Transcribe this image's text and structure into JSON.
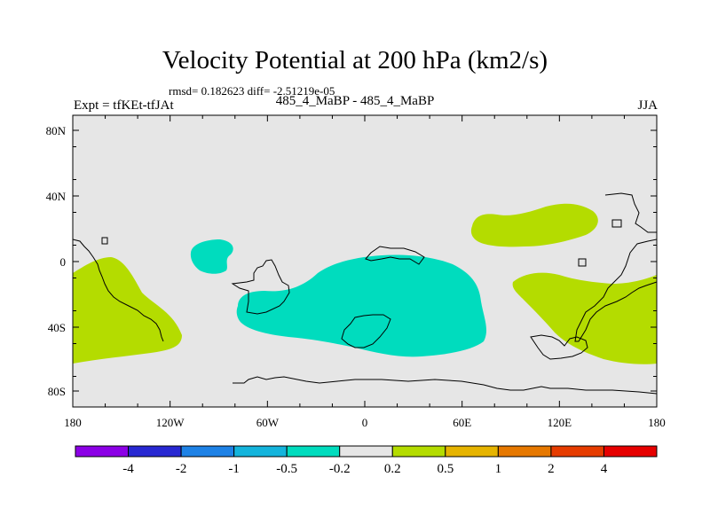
{
  "title": "Velocity Potential at 200 hPa (km2/s)",
  "stats_text": "rmsd= 0.182623 diff= -2.51219e-05",
  "experiment_label": "Expt = tfKEt-tfJAt",
  "cases_label": "485_4_MaBP - 485_4_MaBP",
  "season_label": "JJA",
  "lat_ticks": [
    "80N",
    "40N",
    "0",
    "40S",
    "80S"
  ],
  "lon_ticks": [
    "180",
    "120W",
    "60W",
    "0",
    "60E",
    "120E",
    "180"
  ],
  "colorbar": {
    "colors": [
      "#8c00e6",
      "#2828d2",
      "#1e82e6",
      "#14b4dc",
      "#00dcbe",
      "#e6e6e6",
      "#b4dc00",
      "#e6b400",
      "#e67800",
      "#e63c00",
      "#e60000"
    ],
    "labels": [
      "-4",
      "-2",
      "-1",
      "-0.5",
      "-0.2",
      "0.2",
      "0.5",
      "1",
      "2",
      "4"
    ]
  },
  "colors": {
    "background_field": "#e6e6e6",
    "negative_fill": "#00dcbe",
    "positive_fill": "#b4dc00"
  }
}
